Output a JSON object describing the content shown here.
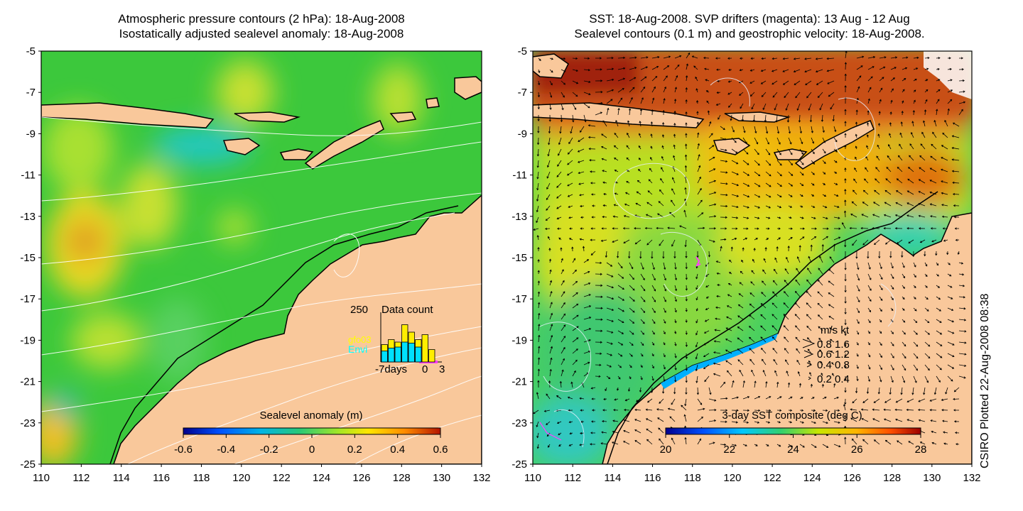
{
  "left_panel": {
    "title_line1": "Atmospheric pressure contours (2 hPa): 18-Aug-2008",
    "title_line2": "Isostatically adjusted sealevel anomaly: 18-Aug-2008",
    "colorbar_label": "Sealevel anomaly (m)",
    "colorbar_ticks": [
      "-0.6",
      "-0.4",
      "-0.2",
      "0",
      "0.2",
      "0.4",
      "0.6"
    ],
    "inset": {
      "y_max_label": "250",
      "title": "Data count",
      "legend_1": "gfo03",
      "legend_2": "Envi",
      "x_labels": [
        "-7days",
        "0",
        "3"
      ],
      "bars": [
        {
          "yellow": 0.35,
          "cyan": 0.22
        },
        {
          "yellow": 0.45,
          "cyan": 0.28
        },
        {
          "yellow": 0.4,
          "cyan": 0.3
        },
        {
          "yellow": 0.75,
          "cyan": 0.4
        },
        {
          "yellow": 0.6,
          "cyan": 0.38
        },
        {
          "yellow": 0.45,
          "cyan": 0.3
        },
        {
          "yellow": 0.55,
          "cyan": 0.0
        },
        {
          "yellow": 0.25,
          "cyan": 0.0
        }
      ]
    }
  },
  "right_panel": {
    "title_line1": "SST: 18-Aug-2008. SVP drifters (magenta): 13 Aug - 12 Aug",
    "title_line2": "Sealevel contours (0.1 m) and geostrophic velocity: 18-Aug-2008.",
    "colorbar_label": "3-day SST composite (deg C)",
    "colorbar_ticks": [
      "20",
      "22",
      "24",
      "26",
      "28"
    ],
    "speed_legend": {
      "header": "m/s  kt",
      "rows": [
        "0.8  1.6",
        "0.6  1.2",
        "0.4  0.8",
        "0.2  0.4"
      ]
    }
  },
  "axes": {
    "x_ticks": [
      "110",
      "112",
      "114",
      "116",
      "118",
      "120",
      "122",
      "124",
      "126",
      "128",
      "130",
      "132"
    ],
    "y_ticks": [
      "-5",
      "-7",
      "-9",
      "-11",
      "-13",
      "-15",
      "-17",
      "-19",
      "-21",
      "-23",
      "-25"
    ]
  },
  "stamp": "CSIRO Plotted 22-Aug-2008 08:38",
  "colors": {
    "land": "#f9c89b",
    "ocean_green": "#3cc83c",
    "sla_scale": [
      "#00008b",
      "#0050ff",
      "#00b4e6",
      "#28c878",
      "#a0e628",
      "#ffe600",
      "#ff8c00",
      "#b41400"
    ],
    "sst_scale": [
      "#000090",
      "#0050ff",
      "#00c8ff",
      "#30d070",
      "#c8e600",
      "#ffb400",
      "#ff5000",
      "#9c0000"
    ]
  }
}
